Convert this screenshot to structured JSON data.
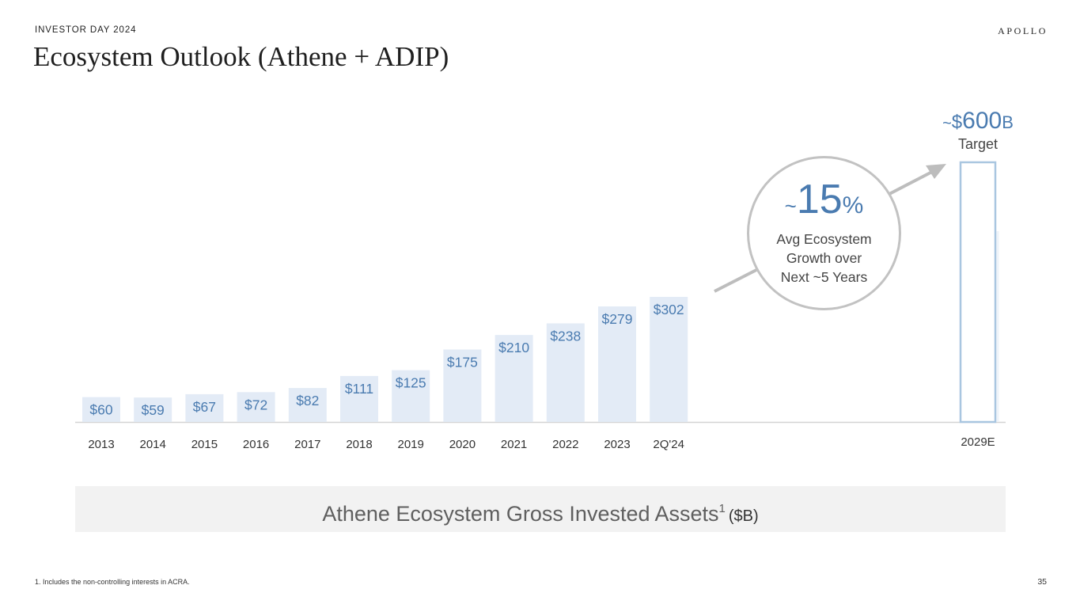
{
  "header": {
    "eyebrow": "INVESTOR DAY 2024",
    "brand": "APOLLO",
    "title": "Ecosystem Outlook (Athene + ADIP)"
  },
  "chart_data": {
    "type": "bar",
    "categories": [
      "2013",
      "2014",
      "2015",
      "2016",
      "2017",
      "2018",
      "2019",
      "2020",
      "2021",
      "2022",
      "2023",
      "2Q'24"
    ],
    "values": [
      60,
      59,
      67,
      72,
      82,
      111,
      125,
      175,
      210,
      238,
      279,
      302
    ],
    "data_labels": [
      "$60",
      "$59",
      "$67",
      "$72",
      "$82",
      "$111",
      "$125",
      "$175",
      "$210",
      "$238",
      "$279",
      "$302"
    ],
    "target": {
      "category": "2029E",
      "value": 600
    },
    "title": "Athene Ecosystem Gross Invested Assets",
    "title_superscript": "1",
    "unit_label": "($B)",
    "ylim": [
      0,
      600
    ],
    "grid": false,
    "legend": "none",
    "colors": {
      "bar": "#e3ebf6",
      "label": "#4a7bb0",
      "target_outline": "#a9c6e0",
      "axis": "#d4d4d4",
      "arrow": "#bdbdbd"
    }
  },
  "target": {
    "tilde": "~",
    "dollar": "$",
    "number": "600",
    "unit": "B",
    "label": "Target"
  },
  "growth_callout": {
    "tilde": "~",
    "number": "15",
    "percent": "%",
    "line1": "Avg Ecosystem",
    "line2": "Growth over",
    "line3": "Next ~5 Years"
  },
  "footer": {
    "footnote": "1. Includes the non-controlling interests in ACRA.",
    "page_number": "35"
  }
}
